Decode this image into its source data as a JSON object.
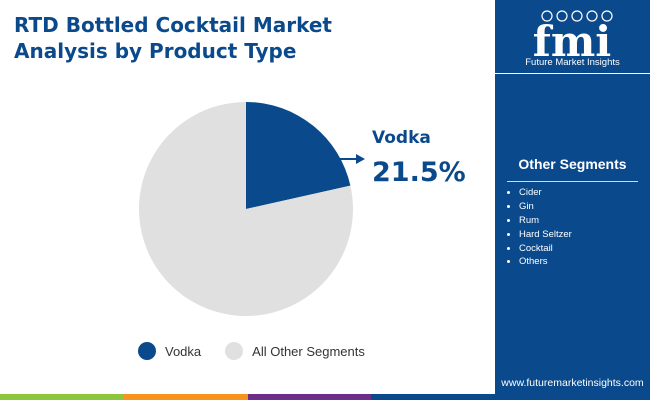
{
  "title": {
    "line1": "RTD Bottled Cocktail Market",
    "line2": "Analysis by Product Type"
  },
  "chart_data": {
    "type": "pie",
    "slices": [
      {
        "label": "Vodka",
        "value": 21.5,
        "color": "#0a4a8c"
      },
      {
        "label": "All Other Segments",
        "value": 78.5,
        "color": "#e0e0e0"
      }
    ],
    "callout": {
      "label": "Vodka",
      "value_text": "21.5%"
    },
    "legend": [
      "Vodka",
      "All Other Segments"
    ],
    "legend_position": "bottom"
  },
  "sidebar": {
    "logo_text": "fmi",
    "logo_tagline": "Future Market Insights",
    "segments_title": "Other Segments",
    "segments": [
      "Cider",
      "Gin",
      "Rum",
      "Hard Seltzer",
      "Cocktail",
      "Others"
    ],
    "website": "www.futuremarketinsights.com"
  },
  "colors": {
    "brand_blue": "#0a4a8c",
    "other_gray": "#e0e0e0",
    "footer_stripes": [
      "#8cc63f",
      "#f7941d",
      "#6d2d8a",
      "#0a4a8c"
    ]
  }
}
